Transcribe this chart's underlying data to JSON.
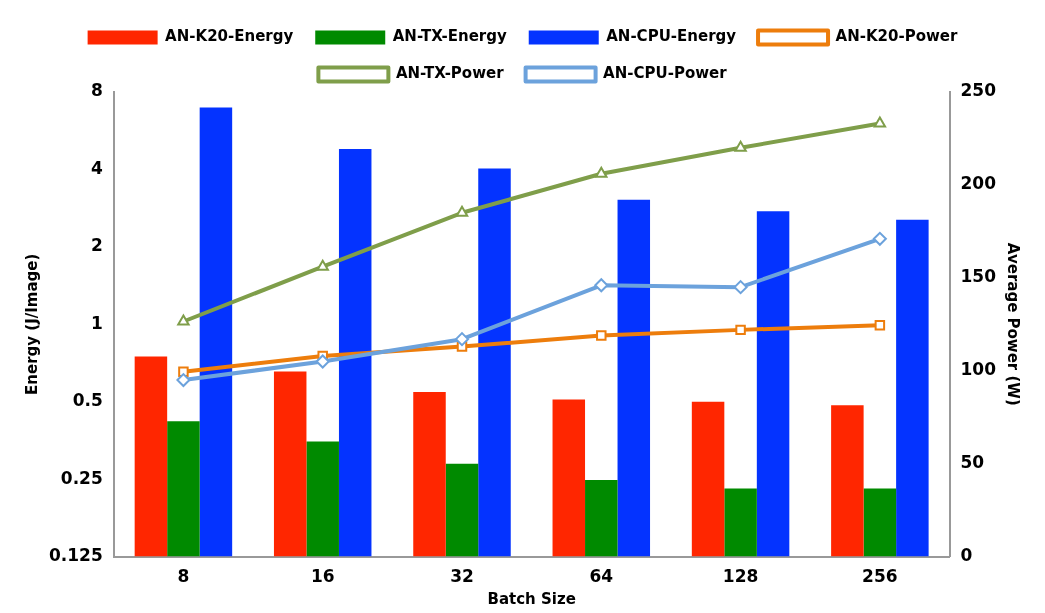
{
  "chart_data": {
    "type": "bar",
    "xlabel": "Batch Size",
    "ylabel": "Energy (J/Image)",
    "y2label": "Average Power (W)",
    "categories": [
      "8",
      "16",
      "32",
      "64",
      "128",
      "256"
    ],
    "series": [
      {
        "name": "AN-K20-Energy",
        "color": "#ff2600",
        "values": [
          0.75,
          0.655,
          0.545,
          0.51,
          0.5,
          0.485
        ]
      },
      {
        "name": "AN-TX-Energy",
        "color": "#008a00",
        "values": [
          0.42,
          0.35,
          0.287,
          0.248,
          0.23,
          0.23
        ]
      },
      {
        "name": "AN-CPU-Energy",
        "color": "#0433ff",
        "values": [
          6.96,
          4.8,
          4.03,
          3.05,
          2.75,
          2.55
        ]
      },
      {
        "name": "AN-K20-Power",
        "type": "line",
        "axis": "y2",
        "marker": "square",
        "color": "#ed7d0c",
        "values": [
          99.5,
          108,
          113,
          119,
          122,
          124.5
        ]
      },
      {
        "name": "AN-TX-Power",
        "type": "line",
        "axis": "y2",
        "marker": "triangle",
        "color": "#7f9e4a",
        "values": [
          126.5,
          156,
          185,
          206,
          220,
          233
        ]
      },
      {
        "name": "AN-CPU-Power",
        "type": "line",
        "axis": "y2",
        "marker": "diamond",
        "color": "#6ca2dc",
        "values": [
          95,
          105,
          117,
          146,
          145,
          171
        ]
      }
    ],
    "log": "y",
    "ylim": [
      0.125,
      8
    ],
    "yticks": [
      0.125,
      0.25,
      0.5,
      1,
      2,
      4,
      8
    ],
    "y2lim": [
      0,
      250
    ],
    "y2ticks": [
      0,
      50,
      100,
      150,
      200,
      250
    ],
    "grid": false,
    "legend": "top"
  }
}
